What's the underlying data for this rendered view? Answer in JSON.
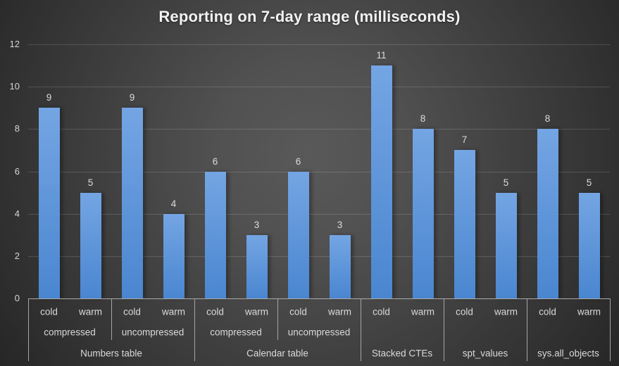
{
  "chart_data": {
    "type": "bar",
    "title": "Reporting on 7-day range (milliseconds)",
    "xlabel": "",
    "ylabel": "",
    "ylim": [
      0,
      12
    ],
    "ytick_step": 2,
    "yticks": [
      0,
      2,
      4,
      6,
      8,
      10,
      12
    ],
    "grid": true,
    "legend": "none",
    "data_labels": true,
    "colors": {
      "bar_top": "#74a5e3",
      "bar_bottom": "#4a86d0",
      "text": "#d9d9d9",
      "title_text": "#f2f2f2",
      "axis_line": "#a5a5a5",
      "background_center": "#595959",
      "background_edge": "#262626"
    },
    "groups": [
      {
        "label": "Numbers table",
        "subgroups": [
          {
            "label": "compressed",
            "points": [
              {
                "label": "cold",
                "value": 9
              },
              {
                "label": "warm",
                "value": 5
              }
            ]
          },
          {
            "label": "uncompressed",
            "points": [
              {
                "label": "cold",
                "value": 9
              },
              {
                "label": "warm",
                "value": 4
              }
            ]
          }
        ]
      },
      {
        "label": "Calendar table",
        "subgroups": [
          {
            "label": "compressed",
            "points": [
              {
                "label": "cold",
                "value": 6
              },
              {
                "label": "warm",
                "value": 3
              }
            ]
          },
          {
            "label": "uncompressed",
            "points": [
              {
                "label": "cold",
                "value": 6
              },
              {
                "label": "warm",
                "value": 3
              }
            ]
          }
        ]
      },
      {
        "label": "Stacked CTEs",
        "subgroups": [
          {
            "label": "",
            "points": [
              {
                "label": "cold",
                "value": 11
              },
              {
                "label": "warm",
                "value": 8
              }
            ]
          }
        ]
      },
      {
        "label": "spt_values",
        "subgroups": [
          {
            "label": "",
            "points": [
              {
                "label": "cold",
                "value": 7
              },
              {
                "label": "warm",
                "value": 5
              }
            ]
          }
        ]
      },
      {
        "label": "sys.all_objects",
        "subgroups": [
          {
            "label": "",
            "points": [
              {
                "label": "cold",
                "value": 8
              },
              {
                "label": "warm",
                "value": 5
              }
            ]
          }
        ]
      }
    ]
  }
}
